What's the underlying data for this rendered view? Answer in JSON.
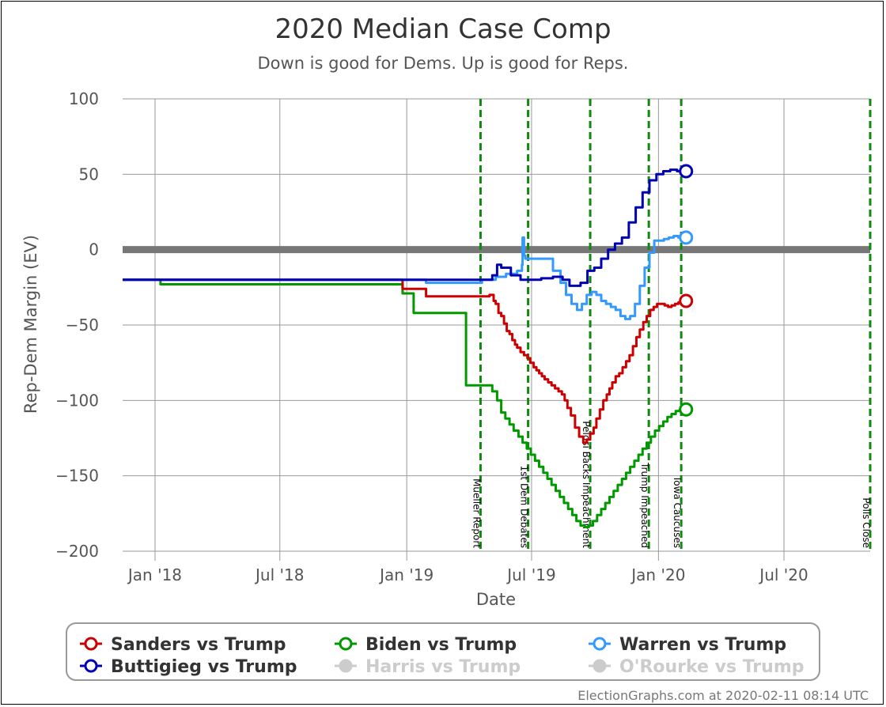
{
  "chart_data": {
    "type": "line",
    "title": "2020 Median Case Comp",
    "subtitle": "Down is good for Dems. Up is good for Reps.",
    "xlabel": "Date",
    "ylabel": "Rep-Dem Margin (EV)",
    "ylim": [
      -200,
      100
    ],
    "xlim": [
      "2017-11-15",
      "2020-11-03"
    ],
    "grid": true,
    "x_ticks": [
      {
        "date": "2018-01-01",
        "label": "Jan '18"
      },
      {
        "date": "2018-07-01",
        "label": "Jul '18"
      },
      {
        "date": "2019-01-01",
        "label": "Jan '19"
      },
      {
        "date": "2019-07-01",
        "label": "Jul '19"
      },
      {
        "date": "2020-01-01",
        "label": "Jan '20"
      },
      {
        "date": "2020-07-01",
        "label": "Jul '20"
      }
    ],
    "y_ticks": [
      100,
      50,
      0,
      -50,
      -100,
      -150,
      -200
    ],
    "zero_line": 0,
    "events": [
      {
        "date": "2019-04-18",
        "label": "Mueller Report"
      },
      {
        "date": "2019-06-26",
        "label": "1st Dem Debates"
      },
      {
        "date": "2019-09-24",
        "label": "Pelosi Backs Impeachment"
      },
      {
        "date": "2019-12-18",
        "label": "Trump Impeached"
      },
      {
        "date": "2020-02-03",
        "label": "Iowa Caucuses"
      },
      {
        "date": "2020-11-03",
        "label": "Polls Close"
      }
    ],
    "series": [
      {
        "name": "Sanders vs Trump",
        "color": "#cc0000",
        "active": true,
        "points": [
          [
            "2017-11-15",
            -20
          ],
          [
            "2018-12-25",
            -20
          ],
          [
            "2018-12-26",
            -26
          ],
          [
            "2019-01-28",
            -26
          ],
          [
            "2019-01-29",
            -31
          ],
          [
            "2019-04-25",
            -31
          ],
          [
            "2019-05-01",
            -30
          ],
          [
            "2019-05-07",
            -34
          ],
          [
            "2019-05-10",
            -36
          ],
          [
            "2019-05-14",
            -42
          ],
          [
            "2019-05-18",
            -44
          ],
          [
            "2019-05-21",
            -44
          ],
          [
            "2019-05-22",
            -49
          ],
          [
            "2019-05-26",
            -54
          ],
          [
            "2019-05-30",
            -56
          ],
          [
            "2019-06-03",
            -60
          ],
          [
            "2019-06-07",
            -63
          ],
          [
            "2019-06-10",
            -65
          ],
          [
            "2019-06-15",
            -68
          ],
          [
            "2019-06-20",
            -70
          ],
          [
            "2019-06-25",
            -72
          ],
          [
            "2019-06-29",
            -75
          ],
          [
            "2019-07-04",
            -78
          ],
          [
            "2019-07-08",
            -80
          ],
          [
            "2019-07-12",
            -82
          ],
          [
            "2019-07-16",
            -84
          ],
          [
            "2019-07-20",
            -86
          ],
          [
            "2019-07-25",
            -88
          ],
          [
            "2019-07-30",
            -90
          ],
          [
            "2019-08-04",
            -92
          ],
          [
            "2019-08-09",
            -94
          ],
          [
            "2019-08-14",
            -96
          ],
          [
            "2019-08-18",
            -100
          ],
          [
            "2019-08-22",
            -105
          ],
          [
            "2019-08-27",
            -110
          ],
          [
            "2019-09-02",
            -118
          ],
          [
            "2019-09-08",
            -124
          ],
          [
            "2019-09-14",
            -128
          ],
          [
            "2019-09-19",
            -126
          ],
          [
            "2019-09-24",
            -122
          ],
          [
            "2019-09-29",
            -118
          ],
          [
            "2019-10-03",
            -112
          ],
          [
            "2019-10-08",
            -106
          ],
          [
            "2019-10-13",
            -100
          ],
          [
            "2019-10-18",
            -96
          ],
          [
            "2019-10-22",
            -92
          ],
          [
            "2019-10-26",
            -88
          ],
          [
            "2019-10-31",
            -84
          ],
          [
            "2019-11-05",
            -82
          ],
          [
            "2019-11-10",
            -78
          ],
          [
            "2019-11-15",
            -74
          ],
          [
            "2019-11-20",
            -70
          ],
          [
            "2019-11-25",
            -64
          ],
          [
            "2019-11-30",
            -58
          ],
          [
            "2019-12-05",
            -53
          ],
          [
            "2019-12-10",
            -48
          ],
          [
            "2019-12-15",
            -44
          ],
          [
            "2019-12-20",
            -40
          ],
          [
            "2019-12-25",
            -38
          ],
          [
            "2019-12-30",
            -36
          ],
          [
            "2020-01-05",
            -36
          ],
          [
            "2020-01-10",
            -37
          ],
          [
            "2020-01-15",
            -38
          ],
          [
            "2020-01-20",
            -37
          ],
          [
            "2020-01-25",
            -36
          ],
          [
            "2020-01-30",
            -35
          ],
          [
            "2020-02-04",
            -34
          ],
          [
            "2020-02-10",
            -34
          ]
        ]
      },
      {
        "name": "Biden vs Trump",
        "color": "#009900",
        "active": true,
        "points": [
          [
            "2017-11-15",
            -20
          ],
          [
            "2018-01-08",
            -20
          ],
          [
            "2018-01-09",
            -23
          ],
          [
            "2018-12-25",
            -23
          ],
          [
            "2018-12-26",
            -29
          ],
          [
            "2019-01-10",
            -29
          ],
          [
            "2019-01-11",
            -42
          ],
          [
            "2019-03-20",
            -42
          ],
          [
            "2019-03-28",
            -90
          ],
          [
            "2019-04-30",
            -90
          ],
          [
            "2019-05-05",
            -94
          ],
          [
            "2019-05-12",
            -100
          ],
          [
            "2019-05-18",
            -108
          ],
          [
            "2019-05-24",
            -112
          ],
          [
            "2019-05-30",
            -116
          ],
          [
            "2019-06-05",
            -120
          ],
          [
            "2019-06-12",
            -124
          ],
          [
            "2019-06-18",
            -128
          ],
          [
            "2019-06-24",
            -132
          ],
          [
            "2019-06-30",
            -136
          ],
          [
            "2019-07-06",
            -140
          ],
          [
            "2019-07-12",
            -144
          ],
          [
            "2019-07-18",
            -148
          ],
          [
            "2019-07-24",
            -152
          ],
          [
            "2019-07-30",
            -156
          ],
          [
            "2019-08-05",
            -160
          ],
          [
            "2019-08-11",
            -164
          ],
          [
            "2019-08-17",
            -168
          ],
          [
            "2019-08-23",
            -172
          ],
          [
            "2019-08-29",
            -176
          ],
          [
            "2019-09-04",
            -180
          ],
          [
            "2019-09-10",
            -183
          ],
          [
            "2019-09-16",
            -184
          ],
          [
            "2019-09-22",
            -183
          ],
          [
            "2019-09-28",
            -180
          ],
          [
            "2019-10-04",
            -176
          ],
          [
            "2019-10-10",
            -172
          ],
          [
            "2019-10-16",
            -168
          ],
          [
            "2019-10-22",
            -164
          ],
          [
            "2019-10-28",
            -160
          ],
          [
            "2019-11-03",
            -156
          ],
          [
            "2019-11-09",
            -152
          ],
          [
            "2019-11-15",
            -148
          ],
          [
            "2019-11-21",
            -144
          ],
          [
            "2019-11-27",
            -140
          ],
          [
            "2019-12-03",
            -136
          ],
          [
            "2019-12-09",
            -132
          ],
          [
            "2019-12-15",
            -128
          ],
          [
            "2019-12-21",
            -124
          ],
          [
            "2019-12-27",
            -120
          ],
          [
            "2020-01-02",
            -117
          ],
          [
            "2020-01-08",
            -114
          ],
          [
            "2020-01-14",
            -111
          ],
          [
            "2020-01-20",
            -109
          ],
          [
            "2020-01-26",
            -107
          ],
          [
            "2020-02-01",
            -106
          ],
          [
            "2020-02-10",
            -106
          ]
        ]
      },
      {
        "name": "Warren vs Trump",
        "color": "#3399ff",
        "active": true,
        "points": [
          [
            "2017-11-15",
            -20
          ],
          [
            "2018-12-20",
            -20
          ],
          [
            "2019-01-28",
            -20
          ],
          [
            "2019-01-29",
            -22
          ],
          [
            "2019-04-10",
            -22
          ],
          [
            "2019-04-20",
            -20
          ],
          [
            "2019-05-10",
            -18
          ],
          [
            "2019-05-25",
            -16
          ],
          [
            "2019-06-10",
            -14
          ],
          [
            "2019-06-17",
            -10
          ],
          [
            "2019-06-18",
            8
          ],
          [
            "2019-06-20",
            -4
          ],
          [
            "2019-06-22",
            -6
          ],
          [
            "2019-07-15",
            -6
          ],
          [
            "2019-08-01",
            -14
          ],
          [
            "2019-08-12",
            -22
          ],
          [
            "2019-08-20",
            -30
          ],
          [
            "2019-08-28",
            -36
          ],
          [
            "2019-09-05",
            -40
          ],
          [
            "2019-09-12",
            -36
          ],
          [
            "2019-09-19",
            -30
          ],
          [
            "2019-09-26",
            -28
          ],
          [
            "2019-10-03",
            -30
          ],
          [
            "2019-10-10",
            -34
          ],
          [
            "2019-10-17",
            -36
          ],
          [
            "2019-10-24",
            -38
          ],
          [
            "2019-10-31",
            -40
          ],
          [
            "2019-11-07",
            -44
          ],
          [
            "2019-11-14",
            -46
          ],
          [
            "2019-11-21",
            -44
          ],
          [
            "2019-11-28",
            -36
          ],
          [
            "2019-12-05",
            -24
          ],
          [
            "2019-12-12",
            -12
          ],
          [
            "2019-12-19",
            -2
          ],
          [
            "2019-12-26",
            6
          ],
          [
            "2020-01-02",
            6
          ],
          [
            "2020-01-09",
            7
          ],
          [
            "2020-01-16",
            8
          ],
          [
            "2020-01-23",
            9
          ],
          [
            "2020-01-30",
            8
          ],
          [
            "2020-02-10",
            8
          ]
        ]
      },
      {
        "name": "Buttigieg vs Trump",
        "color": "#0000b3",
        "active": true,
        "points": [
          [
            "2017-11-15",
            -20
          ],
          [
            "2019-04-25",
            -20
          ],
          [
            "2019-05-05",
            -17
          ],
          [
            "2019-05-12",
            -10
          ],
          [
            "2019-05-18",
            -12
          ],
          [
            "2019-06-01",
            -17
          ],
          [
            "2019-06-15",
            -20
          ],
          [
            "2019-07-01",
            -20
          ],
          [
            "2019-07-15",
            -19
          ],
          [
            "2019-08-01",
            -18
          ],
          [
            "2019-08-15",
            -20
          ],
          [
            "2019-08-25",
            -24
          ],
          [
            "2019-09-10",
            -22
          ],
          [
            "2019-09-20",
            -14
          ],
          [
            "2019-09-30",
            -12
          ],
          [
            "2019-10-10",
            -6
          ],
          [
            "2019-10-20",
            0
          ],
          [
            "2019-10-30",
            4
          ],
          [
            "2019-11-09",
            8
          ],
          [
            "2019-11-19",
            18
          ],
          [
            "2019-11-29",
            28
          ],
          [
            "2019-12-09",
            38
          ],
          [
            "2019-12-19",
            46
          ],
          [
            "2019-12-29",
            50
          ],
          [
            "2020-01-08",
            52
          ],
          [
            "2020-01-18",
            53
          ],
          [
            "2020-01-28",
            52
          ],
          [
            "2020-02-10",
            52
          ]
        ]
      },
      {
        "name": "Harris vs Trump",
        "color": "#cccccc",
        "active": false,
        "points": []
      },
      {
        "name": "O'Rourke vs Trump",
        "color": "#cccccc",
        "active": false,
        "points": []
      }
    ]
  },
  "footer": {
    "credit": "ElectionGraphs.com at 2020-02-11 08:14 UTC"
  }
}
